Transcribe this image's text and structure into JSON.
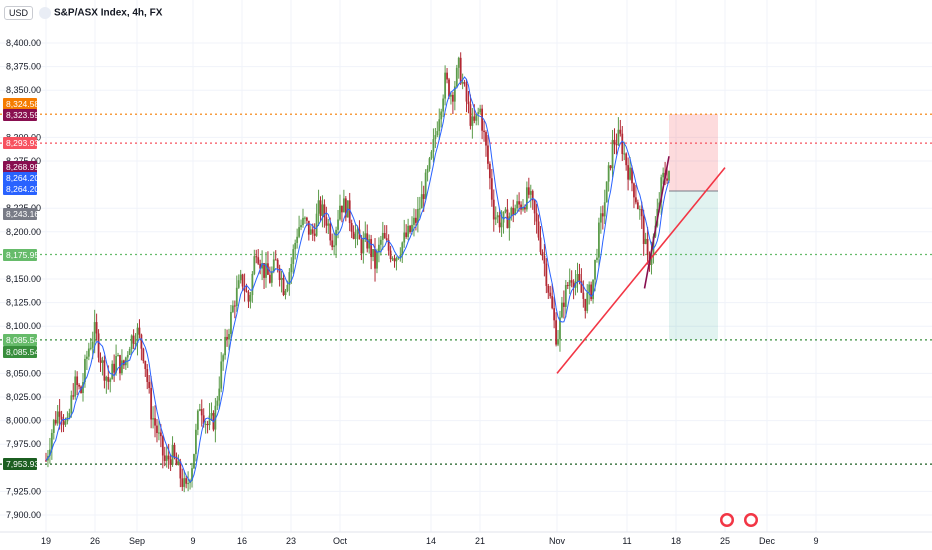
{
  "header": {
    "currency": "USD",
    "symbol": "S&P/ASX Index, 4h, FX"
  },
  "chart_data": {
    "type": "candlestick",
    "title": "S&P/ASX Index, 4h, FX",
    "ylim": [
      7890,
      8415
    ],
    "y_ticks": [
      {
        "v": 8400,
        "label": "8,400.00"
      },
      {
        "v": 8375,
        "label": "8,375.00"
      },
      {
        "v": 8350,
        "label": "8,350.00"
      },
      {
        "v": 8300,
        "label": "8,300.00"
      },
      {
        "v": 8275,
        "label": "8,275.00"
      },
      {
        "v": 8225,
        "label": "8,225.00"
      },
      {
        "v": 8200,
        "label": "8,200.00"
      },
      {
        "v": 8150,
        "label": "8,150.00"
      },
      {
        "v": 8125,
        "label": "8,125.00"
      },
      {
        "v": 8100,
        "label": "8,100.00"
      },
      {
        "v": 8050,
        "label": "8,050.00"
      },
      {
        "v": 8025,
        "label": "8,025.00"
      },
      {
        "v": 8000,
        "label": "8,000.00"
      },
      {
        "v": 7975,
        "label": "7,975.00"
      },
      {
        "v": 7925,
        "label": "7,925.00"
      },
      {
        "v": 7900,
        "label": "7,900.00"
      }
    ],
    "x_ticks": [
      {
        "d": 0,
        "label": "19"
      },
      {
        "d": 7,
        "label": "26"
      },
      {
        "d": 13,
        "label": "Sep"
      },
      {
        "d": 21,
        "label": "9"
      },
      {
        "d": 28,
        "label": "16"
      },
      {
        "d": 35,
        "label": "23"
      },
      {
        "d": 42,
        "label": "Oct"
      },
      {
        "d": 55,
        "label": "14"
      },
      {
        "d": 62,
        "label": "21"
      },
      {
        "d": 73,
        "label": "Nov"
      },
      {
        "d": 83,
        "label": "11"
      },
      {
        "d": 90,
        "label": "18"
      },
      {
        "d": 97,
        "label": "25"
      },
      {
        "d": 103,
        "label": "Dec"
      },
      {
        "d": 110,
        "label": "9"
      }
    ],
    "close_path": [
      [
        0,
        7958
      ],
      [
        1,
        7995
      ],
      [
        2,
        8015
      ],
      [
        3,
        7990
      ],
      [
        4,
        8040
      ],
      [
        5,
        8030
      ],
      [
        6,
        8075
      ],
      [
        7,
        8095
      ],
      [
        8,
        8060
      ],
      [
        9,
        8040
      ],
      [
        10,
        8065
      ],
      [
        11,
        8055
      ],
      [
        12,
        8085
      ],
      [
        13,
        8095
      ],
      [
        14,
        8070
      ],
      [
        15,
        8010
      ],
      [
        16,
        7985
      ],
      [
        17,
        7955
      ],
      [
        18,
        7965
      ],
      [
        19,
        7945
      ],
      [
        20,
        7925
      ],
      [
        21,
        7960
      ],
      [
        22,
        8020
      ],
      [
        23,
        7995
      ],
      [
        24,
        8000
      ],
      [
        25,
        8055
      ],
      [
        26,
        8095
      ],
      [
        27,
        8130
      ],
      [
        28,
        8150
      ],
      [
        29,
        8125
      ],
      [
        30,
        8185
      ],
      [
        31,
        8160
      ],
      [
        32,
        8150
      ],
      [
        33,
        8170
      ],
      [
        34,
        8140
      ],
      [
        35,
        8165
      ],
      [
        36,
        8205
      ],
      [
        37,
        8210
      ],
      [
        38,
        8195
      ],
      [
        39,
        8225
      ],
      [
        40,
        8215
      ],
      [
        41,
        8190
      ],
      [
        42,
        8230
      ],
      [
        43,
        8225
      ],
      [
        44,
        8200
      ],
      [
        45,
        8185
      ],
      [
        46,
        8190
      ],
      [
        47,
        8165
      ],
      [
        48,
        8195
      ],
      [
        49,
        8180
      ],
      [
        50,
        8175
      ],
      [
        51,
        8190
      ],
      [
        52,
        8200
      ],
      [
        53,
        8215
      ],
      [
        54,
        8245
      ],
      [
        55,
        8275
      ],
      [
        56,
        8320
      ],
      [
        57,
        8360
      ],
      [
        58,
        8345
      ],
      [
        59,
        8375
      ],
      [
        60,
        8340
      ],
      [
        61,
        8310
      ],
      [
        62,
        8330
      ],
      [
        63,
        8280
      ],
      [
        64,
        8220
      ],
      [
        65,
        8210
      ],
      [
        66,
        8215
      ],
      [
        67,
        8225
      ],
      [
        68,
        8230
      ],
      [
        69,
        8240
      ],
      [
        70,
        8210
      ],
      [
        71,
        8175
      ],
      [
        72,
        8130
      ],
      [
        73,
        8085
      ],
      [
        74,
        8130
      ],
      [
        75,
        8155
      ],
      [
        76,
        8145
      ],
      [
        77,
        8125
      ],
      [
        78,
        8140
      ],
      [
        79,
        8200
      ],
      [
        80,
        8240
      ],
      [
        81,
        8295
      ],
      [
        82,
        8300
      ],
      [
        83,
        8270
      ],
      [
        84,
        8245
      ],
      [
        85,
        8215
      ],
      [
        86,
        8165
      ],
      [
        87,
        8200
      ],
      [
        88,
        8255
      ],
      [
        89,
        8265
      ]
    ],
    "levels": [
      {
        "v": 8324.58,
        "label": "8,324.58",
        "color": "#f57c00",
        "line": true
      },
      {
        "v": 8323.59,
        "label": "8,323.59",
        "color": "#880e4f",
        "line": false
      },
      {
        "v": 8293.93,
        "label": "8,293.93",
        "color": "#f7525f",
        "line": true
      },
      {
        "v": 8268.99,
        "label": "8,268.99",
        "color": "#880e4f",
        "line": false
      },
      {
        "v": 8264.2,
        "label": "8,264.20",
        "color": "#2962ff",
        "line": false
      },
      {
        "v": 8243.16,
        "label": "8,243.16",
        "color": "#787b86",
        "line": false
      },
      {
        "v": 8175.95,
        "label": "8,175.95",
        "color": "#66bb6a",
        "line": true
      },
      {
        "v": 8085.54,
        "label": "8,085.54",
        "color": "#388e3c",
        "line": true
      },
      {
        "v": 7953.93,
        "label": "7,953.93",
        "color": "#1b5e20",
        "line": true
      }
    ],
    "countdown": "03:07:59",
    "trendlines": [
      {
        "from": [
          73,
          8050
        ],
        "to": [
          97,
          8268
        ],
        "color": "#f23645"
      },
      {
        "from": [
          85.5,
          8140
        ],
        "to": [
          89,
          8280
        ],
        "color": "#880e4f"
      }
    ],
    "position": {
      "start": 89,
      "end": 96,
      "entry": 8243.16,
      "stop": 8324.58,
      "target": 8085.54
    },
    "colors": {
      "up": "#26a69a",
      "up_fill": "#5b9b4a",
      "down": "#b22833",
      "ma": "#2962ff",
      "grid": "#f0f3fa"
    }
  }
}
